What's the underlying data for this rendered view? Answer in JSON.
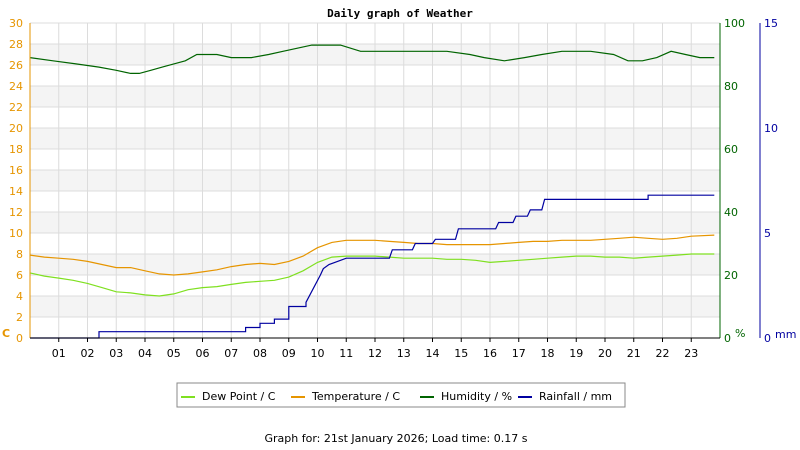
{
  "chart_data": {
    "type": "line",
    "title": "Daily graph of Weather",
    "x_ticks": [
      "01",
      "02",
      "03",
      "04",
      "05",
      "06",
      "07",
      "08",
      "09",
      "10",
      "11",
      "12",
      "13",
      "14",
      "15",
      "16",
      "17",
      "18",
      "19",
      "20",
      "21",
      "22",
      "23"
    ],
    "xlim": [
      0,
      24
    ],
    "axes": {
      "left": {
        "label": "C",
        "min": 0,
        "max": 30,
        "ticks": [
          0,
          2,
          4,
          6,
          8,
          10,
          12,
          14,
          16,
          18,
          20,
          22,
          24,
          26,
          28,
          30
        ],
        "color": "#e69500"
      },
      "humidity": {
        "label": "%",
        "min": 0,
        "max": 100,
        "ticks": [
          0,
          20,
          40,
          60,
          80,
          100
        ],
        "color": "#006400"
      },
      "rain": {
        "label": "mm",
        "min": 0,
        "max": 15,
        "ticks": [
          0,
          5,
          10,
          15
        ],
        "color": "#0000a0"
      }
    },
    "series": [
      {
        "name": "Dew Point / C",
        "axis": "left",
        "color": "#7fe020",
        "x": [
          0,
          0.5,
          1,
          1.5,
          2,
          2.5,
          3,
          3.5,
          4,
          4.5,
          5,
          5.5,
          6,
          6.5,
          7,
          7.5,
          8,
          8.5,
          9,
          9.5,
          10,
          10.5,
          11,
          11.5,
          12,
          12.5,
          13,
          13.5,
          14,
          14.5,
          15,
          15.5,
          16,
          16.5,
          17,
          17.5,
          18,
          18.5,
          19,
          19.5,
          20,
          20.5,
          21,
          21.5,
          22,
          22.5,
          23,
          23.8
        ],
        "values": [
          6.2,
          5.9,
          5.7,
          5.5,
          5.2,
          4.8,
          4.4,
          4.3,
          4.1,
          4.0,
          4.2,
          4.6,
          4.8,
          4.9,
          5.1,
          5.3,
          5.4,
          5.5,
          5.8,
          6.4,
          7.2,
          7.7,
          7.8,
          7.8,
          7.8,
          7.7,
          7.6,
          7.6,
          7.6,
          7.5,
          7.5,
          7.4,
          7.2,
          7.3,
          7.4,
          7.5,
          7.6,
          7.7,
          7.8,
          7.8,
          7.7,
          7.7,
          7.6,
          7.7,
          7.8,
          7.9,
          8.0,
          8.0
        ]
      },
      {
        "name": "Temperature / C",
        "axis": "left",
        "color": "#e69500",
        "x": [
          0,
          0.5,
          1,
          1.5,
          2,
          2.5,
          3,
          3.5,
          4,
          4.5,
          5,
          5.5,
          6,
          6.5,
          7,
          7.5,
          8,
          8.5,
          9,
          9.5,
          10,
          10.5,
          11,
          11.5,
          12,
          12.5,
          13,
          13.5,
          14,
          14.5,
          15,
          15.5,
          16,
          16.5,
          17,
          17.5,
          18,
          18.5,
          19,
          19.5,
          20,
          20.5,
          21,
          21.5,
          22,
          22.5,
          23,
          23.8
        ],
        "values": [
          7.9,
          7.7,
          7.6,
          7.5,
          7.3,
          7.0,
          6.7,
          6.7,
          6.4,
          6.1,
          6.0,
          6.1,
          6.3,
          6.5,
          6.8,
          7.0,
          7.1,
          7.0,
          7.3,
          7.8,
          8.6,
          9.1,
          9.3,
          9.3,
          9.3,
          9.2,
          9.1,
          9.0,
          9.0,
          8.9,
          8.9,
          8.9,
          8.9,
          9.0,
          9.1,
          9.2,
          9.2,
          9.3,
          9.3,
          9.3,
          9.4,
          9.5,
          9.6,
          9.5,
          9.4,
          9.5,
          9.7,
          9.8
        ]
      },
      {
        "name": "Humidity / %",
        "axis": "humidity",
        "color": "#006400",
        "x": [
          0,
          0.8,
          1.6,
          2.4,
          3.0,
          3.5,
          3.8,
          4.2,
          4.6,
          5.0,
          5.4,
          5.8,
          6.5,
          7.0,
          7.7,
          8.3,
          8.8,
          9.3,
          9.8,
          10.3,
          10.8,
          11.5,
          12.5,
          13.5,
          14.5,
          15.3,
          15.8,
          16.5,
          17.2,
          17.8,
          18.5,
          19.5,
          20.3,
          20.8,
          21.3,
          21.8,
          22.3,
          22.8,
          23.3,
          23.8
        ],
        "values": [
          89,
          88,
          87,
          86,
          85,
          84,
          84,
          85,
          86,
          87,
          88,
          90,
          90,
          89,
          89,
          90,
          91,
          92,
          93,
          93,
          93,
          91,
          91,
          91,
          91,
          90,
          89,
          88,
          89,
          90,
          91,
          91,
          90,
          88,
          88,
          89,
          91,
          90,
          89,
          89
        ]
      },
      {
        "name": "Rainfall / mm",
        "axis": "rain",
        "color": "#0000a0",
        "x": [
          0,
          2.4,
          2.4,
          7.5,
          7.5,
          8.0,
          8.0,
          8.5,
          8.5,
          9.0,
          9.0,
          9.6,
          9.6,
          10.1,
          10.2,
          10.4,
          10.6,
          11.0,
          11.1,
          12.5,
          12.6,
          13.3,
          13.4,
          14.0,
          14.1,
          14.8,
          14.9,
          16.2,
          16.3,
          16.8,
          16.9,
          17.3,
          17.4,
          17.8,
          17.9,
          21.5,
          21.5,
          23.8
        ],
        "values": [
          0,
          0,
          0.3,
          0.3,
          0.5,
          0.5,
          0.7,
          0.7,
          0.9,
          0.9,
          1.5,
          1.5,
          1.7,
          3.0,
          3.3,
          3.5,
          3.6,
          3.8,
          3.8,
          3.8,
          4.2,
          4.2,
          4.5,
          4.5,
          4.7,
          4.7,
          5.2,
          5.2,
          5.5,
          5.5,
          5.8,
          5.8,
          6.1,
          6.1,
          6.6,
          6.6,
          6.8,
          6.8
        ]
      }
    ]
  },
  "footer": "Graph for: 21st January 2026; Load time: 0.17 s"
}
